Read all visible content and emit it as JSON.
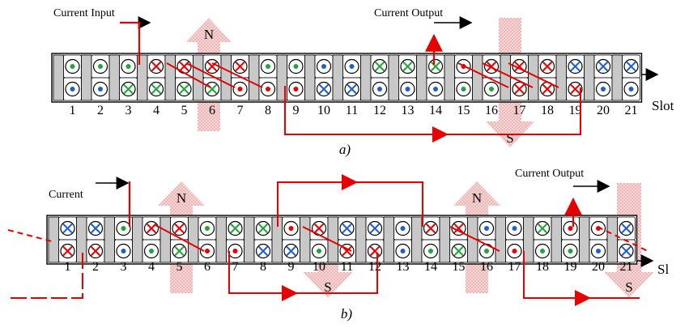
{
  "colors": {
    "wire": "#e60000",
    "dot_green": "#1fa637",
    "dot_blue": "#1d5fd1",
    "cross_green": "#1fa637",
    "cross_blue": "#1d5fd1",
    "cross_red": "#e60000",
    "tooth": "#c8c8c8",
    "arrow_fill": "#f3c6c6"
  },
  "panel_a": {
    "caption": "a)",
    "current_input_label": "Current Input",
    "current_output_label": "Current Output",
    "slot_axis_label": "Slot",
    "pole_n": "N",
    "pole_s": "S",
    "slot_numbers": [
      "1",
      "2",
      "3",
      "4",
      "5",
      "6",
      "7",
      "8",
      "9",
      "10",
      "11",
      "12",
      "13",
      "14",
      "15",
      "16",
      "17",
      "18",
      "19",
      "20",
      "21"
    ],
    "top_row": [
      "dot-green",
      "dot-green",
      "dot-green",
      "cross-red",
      "cross-red",
      "cross-red",
      "cross-red",
      "dot-green",
      "dot-green",
      "dot-blue",
      "dot-blue",
      "cross-green",
      "cross-green",
      "cross-green",
      "dot-red",
      "cross-red",
      "cross-red",
      "cross-red",
      "cross-blue",
      "cross-blue",
      "cross-blue"
    ],
    "bottom_row": [
      "dot-blue",
      "dot-blue",
      "cross-green",
      "cross-green",
      "cross-green",
      "cross-green",
      "dot-red",
      "dot-red",
      "dot-red",
      "cross-blue",
      "cross-blue",
      "dot-blue",
      "dot-blue",
      "dot-blue",
      "dot-green",
      "dot-green",
      "cross-red",
      "cross-red",
      "cross-red",
      "dot-blue",
      "dot-blue"
    ]
  },
  "panel_b": {
    "caption": "b)",
    "current_input_label": "Current",
    "current_output_label": "Current Output",
    "slot_axis_label": "Sl",
    "pole_n1": "N",
    "pole_s1": "S",
    "pole_n2": "N",
    "pole_s2": "S",
    "slot_numbers": [
      "1",
      "2",
      "3",
      "4",
      "5",
      "6",
      "7",
      "8",
      "9",
      "10",
      "11",
      "12",
      "13",
      "14",
      "15",
      "16",
      "17",
      "18",
      "19",
      "20",
      "21"
    ],
    "top_row": [
      "cross-blue",
      "cross-blue",
      "dot-green",
      "cross-red",
      "cross-red",
      "dot-green",
      "cross-green",
      "cross-green",
      "dot-red",
      "cross-red",
      "cross-blue",
      "cross-blue",
      "dot-blue",
      "cross-red",
      "cross-red",
      "dot-blue",
      "dot-blue",
      "cross-green",
      "dot-red",
      "dot-red",
      "cross-blue"
    ],
    "bottom_row": [
      "cross-red",
      "cross-red",
      "dot-blue",
      "dot-green",
      "cross-green",
      "dot-red",
      "dot-red",
      "cross-blue",
      "cross-blue",
      "dot-green",
      "cross-red",
      "cross-red",
      "dot-blue",
      "dot-green",
      "cross-green",
      "dot-green",
      "dot-red",
      "dot-green",
      "dot-green",
      "dot-blue",
      "cross-blue"
    ]
  }
}
